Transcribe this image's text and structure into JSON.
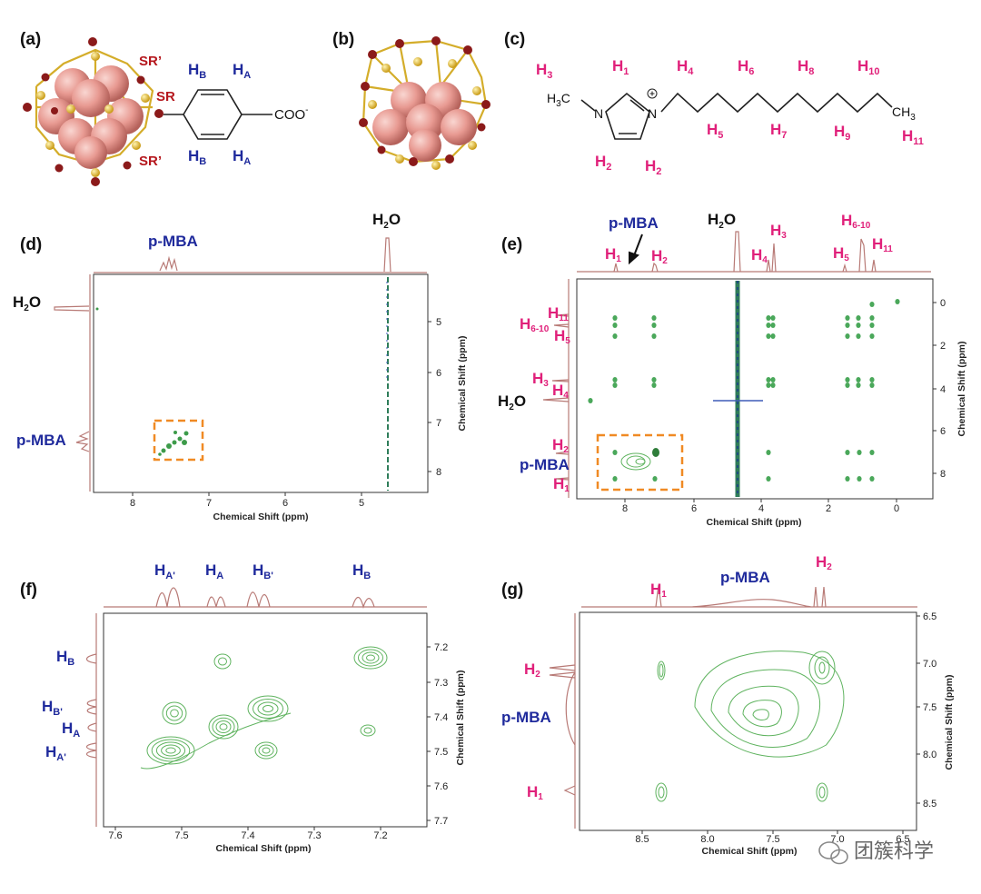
{
  "panels": {
    "a": "(a)",
    "b": "(b)",
    "c": "(c)",
    "d": "(d)",
    "e": "(e)",
    "f": "(f)",
    "g": "(g)"
  },
  "panel_a": {
    "sr_prime_top": "SR’",
    "sr": "SR",
    "sr_prime_bottom": "SR’",
    "hb_top": "H",
    "hb_sub": "B",
    "ha_top": "H",
    "ha_sub": "A",
    "hb_bottom": "H",
    "ha_bottom": "H",
    "coo": "COO",
    "coo_charge": "-"
  },
  "panel_c": {
    "h3": "H",
    "h3_sub": "3",
    "h1": "H",
    "h1_sub": "1",
    "h4": "H",
    "h4_sub": "4",
    "h6": "H",
    "h6_sub": "6",
    "h8": "H",
    "h8_sub": "8",
    "h10": "H",
    "h10_sub": "10",
    "h5": "H",
    "h5_sub": "5",
    "h7": "H",
    "h7_sub": "7",
    "h9": "H",
    "h9_sub": "9",
    "h11": "H",
    "h11_sub": "11",
    "h2a": "H",
    "h2a_sub": "2",
    "h2b": "H",
    "h2b_sub": "2",
    "methyl": "H",
    "methyl_sub": "3",
    "methyl_c": "C",
    "n1": "N",
    "n2": "N",
    "ch3": "CH",
    "ch3_sub": "3"
  },
  "panel_d": {
    "top_pmba": "p-MBA",
    "top_h2o": "H",
    "top_h2o_sub": "2",
    "top_h2o_o": "O",
    "left_h2o": "H",
    "left_h2o_sub": "2",
    "left_h2o_o": "O",
    "left_pmba": "p-MBA",
    "xlabel": "Chemical Shift (ppm)",
    "ylabel": "Chemical Shift (ppm)",
    "xticks": [
      "8",
      "7",
      "6",
      "5"
    ],
    "yticks": [
      "5",
      "6",
      "7",
      "8"
    ]
  },
  "panel_e": {
    "pmba": "p-MBA",
    "h2o": "H",
    "h2o_sub": "2",
    "h2o_o": "O",
    "h1": "H",
    "h1_sub": "1",
    "h2": "H",
    "h2_sub": "2",
    "h3": "H",
    "h3_sub": "3",
    "h4": "H",
    "h4_sub": "4",
    "h5": "H",
    "h5_sub": "5",
    "h610": "H",
    "h610_sub": "6-10",
    "h11": "H",
    "h11_sub": "11",
    "left_h11": "H",
    "left_h11_sub": "11",
    "left_h610": "H",
    "left_h610_sub": "6-10",
    "left_h5": "H",
    "left_h5_sub": "5",
    "left_h3": "H",
    "left_h3_sub": "3",
    "left_h4": "H",
    "left_h4_sub": "4",
    "left_h2o": "H",
    "left_h2o_sub": "2",
    "left_h2o_o": "O",
    "left_h2": "H",
    "left_h2_sub": "2",
    "left_pmba": "p-MBA",
    "left_h1": "H",
    "left_h1_sub": "1",
    "xlabel": "Chemical Shift (ppm)",
    "ylabel": "Chemical Shift (ppm)",
    "xticks": [
      "8",
      "6",
      "4",
      "2",
      "0"
    ],
    "yticks": [
      "0",
      "2",
      "4",
      "6",
      "8"
    ]
  },
  "panel_f": {
    "top": [
      {
        "t": "H",
        "s": "A'"
      },
      {
        "t": "H",
        "s": "A"
      },
      {
        "t": "H",
        "s": "B'"
      },
      {
        "t": "H",
        "s": "B"
      }
    ],
    "left": [
      {
        "t": "H",
        "s": "B"
      },
      {
        "t": "H",
        "s": "B'"
      },
      {
        "t": "H",
        "s": "A"
      },
      {
        "t": "H",
        "s": "A'"
      }
    ],
    "xlabel": "Chemical Shift (ppm)",
    "ylabel": "Chemical Shift (ppm)",
    "xticks": [
      "7.6",
      "7.5",
      "7.4",
      "7.3",
      "7.2"
    ],
    "yticks": [
      "7.2",
      "7.3",
      "7.4",
      "7.5",
      "7.6",
      "7.7"
    ]
  },
  "panel_g": {
    "top_h1": "H",
    "top_h1_sub": "1",
    "top_pmba": "p-MBA",
    "top_h2": "H",
    "top_h2_sub": "2",
    "left_h2": "H",
    "left_h2_sub": "2",
    "left_pmba": "p-MBA",
    "left_h1": "H",
    "left_h1_sub": "1",
    "xlabel": "Chemical Shift (ppm)",
    "ylabel": "Chemical Shift (ppm)",
    "xticks": [
      "8.5",
      "8.0",
      "7.5",
      "7.0",
      "6.5"
    ],
    "yticks": [
      "6.5",
      "7.0",
      "7.5",
      "8.0",
      "8.5"
    ]
  },
  "watermark": "团簇科学",
  "colors": {
    "magenta": "#e0207a",
    "navy": "#1f2a9c",
    "dark_red": "#b5171d",
    "spectrum": "#b87a76",
    "contour": "#5fb35f",
    "dash_box": "#f08a24",
    "gold": "#e8c44a",
    "atom": "#e89a92"
  }
}
